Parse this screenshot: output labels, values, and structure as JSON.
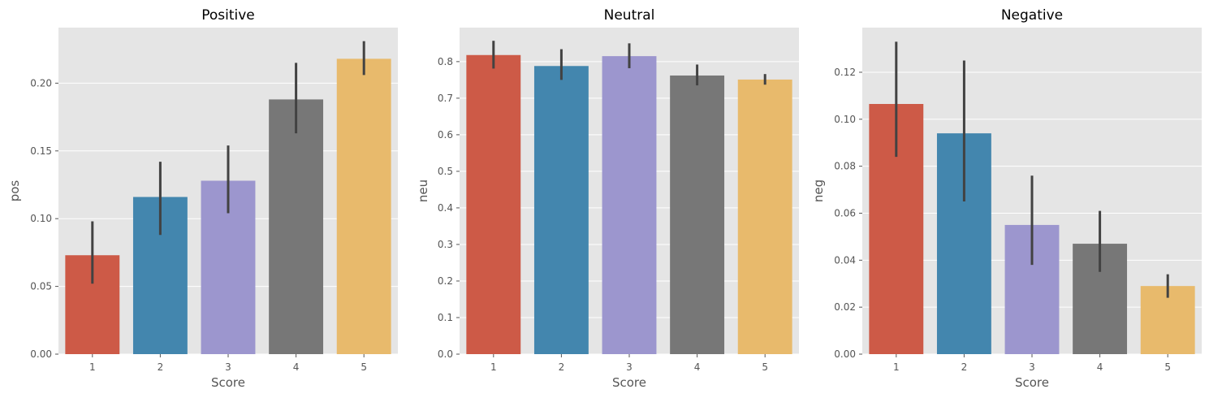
{
  "chart_data": [
    {
      "type": "bar",
      "title": "Positive",
      "xlabel": "Score",
      "ylabel": "pos",
      "categories": [
        "1",
        "2",
        "3",
        "4",
        "5"
      ],
      "values": [
        0.073,
        0.116,
        0.128,
        0.188,
        0.218
      ],
      "error_low": [
        0.052,
        0.088,
        0.104,
        0.163,
        0.206
      ],
      "error_high": [
        0.098,
        0.142,
        0.154,
        0.215,
        0.231
      ],
      "ylim": [
        0,
        0.241
      ],
      "yticks": [
        0.0,
        0.05,
        0.1,
        0.15,
        0.2
      ],
      "ytick_labels": [
        "0.00",
        "0.05",
        "0.10",
        "0.15",
        "0.20"
      ],
      "grid": true
    },
    {
      "type": "bar",
      "title": "Neutral",
      "xlabel": "Score",
      "ylabel": "neu",
      "categories": [
        "1",
        "2",
        "3",
        "4",
        "5"
      ],
      "values": [
        0.818,
        0.788,
        0.815,
        0.762,
        0.751
      ],
      "error_low": [
        0.781,
        0.75,
        0.782,
        0.735,
        0.737
      ],
      "error_high": [
        0.857,
        0.834,
        0.85,
        0.792,
        0.766
      ],
      "ylim": [
        0,
        0.893
      ],
      "yticks": [
        0.0,
        0.1,
        0.2,
        0.3,
        0.4,
        0.5,
        0.6,
        0.7,
        0.8
      ],
      "ytick_labels": [
        "0.0",
        "0.1",
        "0.2",
        "0.3",
        "0.4",
        "0.5",
        "0.6",
        "0.7",
        "0.8"
      ],
      "grid": true
    },
    {
      "type": "bar",
      "title": "Negative",
      "xlabel": "Score",
      "ylabel": "neg",
      "categories": [
        "1",
        "2",
        "3",
        "4",
        "5"
      ],
      "values": [
        0.1065,
        0.094,
        0.055,
        0.047,
        0.029
      ],
      "error_low": [
        0.084,
        0.065,
        0.038,
        0.035,
        0.024
      ],
      "error_high": [
        0.133,
        0.125,
        0.076,
        0.061,
        0.034
      ],
      "ylim": [
        0,
        0.139
      ],
      "yticks": [
        0.0,
        0.02,
        0.04,
        0.06,
        0.08,
        0.1,
        0.12
      ],
      "ytick_labels": [
        "0.00",
        "0.02",
        "0.04",
        "0.06",
        "0.08",
        "0.10",
        "0.12"
      ],
      "grid": true
    }
  ],
  "colors": {
    "bars": [
      "#cd5a47",
      "#4386ae",
      "#9c96ce",
      "#777777",
      "#e8ba6c"
    ],
    "background": "#e5e5e5",
    "grid": "#ffffff",
    "error_bar": "#424242"
  }
}
